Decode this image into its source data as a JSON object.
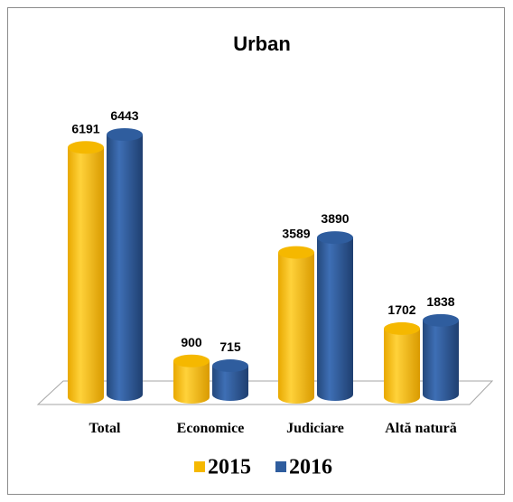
{
  "chart_data": {
    "type": "bar3d",
    "title": "Urban",
    "categories": [
      "Total",
      "Economice",
      "Judiciare",
      "Altă natură"
    ],
    "series": [
      {
        "name": "2015",
        "color": "#f5b800",
        "values": [
          6191,
          900,
          3589,
          1702
        ]
      },
      {
        "name": "2016",
        "color": "#2f5d9e",
        "values": [
          6443,
          715,
          3890,
          1838
        ]
      }
    ]
  }
}
